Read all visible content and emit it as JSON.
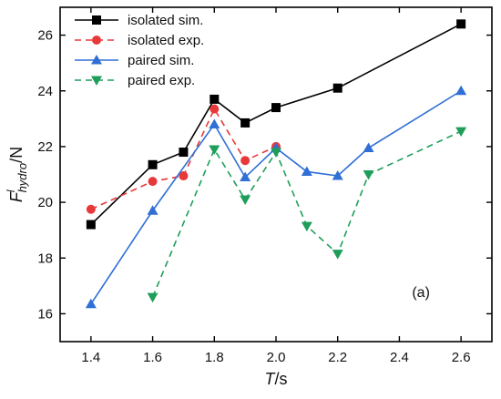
{
  "chart_data": {
    "type": "line",
    "title": "",
    "xlabel": {
      "main": "T",
      "unit": "/s"
    },
    "ylabel": {
      "main": "F",
      "superscript": "l",
      "subscript": "hydro",
      "unit": "/N"
    },
    "xlim": [
      1.3,
      2.7
    ],
    "ylim": [
      15,
      27
    ],
    "xticks": [
      1.4,
      1.6,
      1.8,
      2.0,
      2.2,
      2.4,
      2.6
    ],
    "yticks": [
      16,
      18,
      20,
      22,
      24,
      26
    ],
    "x_tick_labels": [
      "1.4",
      "1.6",
      "1.8",
      "2.0",
      "2.2",
      "2.4",
      "2.6"
    ],
    "y_tick_labels": [
      "16",
      "18",
      "20",
      "22",
      "24",
      "26"
    ],
    "grid": false,
    "legend_position": "top-left",
    "annotation": "(a)",
    "series": [
      {
        "name": "isolated sim.",
        "color": "#000000",
        "marker": "square",
        "dash": "solid",
        "x": [
          1.4,
          1.6,
          1.7,
          1.8,
          1.9,
          2.0,
          2.2,
          2.6
        ],
        "y": [
          19.2,
          21.35,
          21.8,
          23.7,
          22.85,
          23.4,
          24.1,
          26.4
        ]
      },
      {
        "name": "isolated exp.",
        "color": "#e8393a",
        "marker": "circle",
        "dash": "dashed",
        "x": [
          1.4,
          1.6,
          1.7,
          1.8,
          1.9,
          2.0
        ],
        "y": [
          19.75,
          20.75,
          20.95,
          23.35,
          21.5,
          22.0
        ]
      },
      {
        "name": "paired sim.",
        "color": "#2f6fd6",
        "marker": "triangle-up",
        "dash": "solid",
        "x": [
          1.4,
          1.6,
          1.8,
          1.9,
          2.0,
          2.1,
          2.2,
          2.3,
          2.6
        ],
        "y": [
          16.35,
          19.7,
          22.8,
          20.9,
          21.95,
          21.1,
          20.95,
          21.95,
          24.0
        ]
      },
      {
        "name": "paired exp.",
        "color": "#1e9e5a",
        "marker": "triangle-down",
        "dash": "dashed",
        "x": [
          1.6,
          1.8,
          1.9,
          2.0,
          2.1,
          2.2,
          2.3,
          2.6
        ],
        "y": [
          16.6,
          21.9,
          20.1,
          21.8,
          19.15,
          18.15,
          21.0,
          22.55
        ]
      }
    ]
  }
}
